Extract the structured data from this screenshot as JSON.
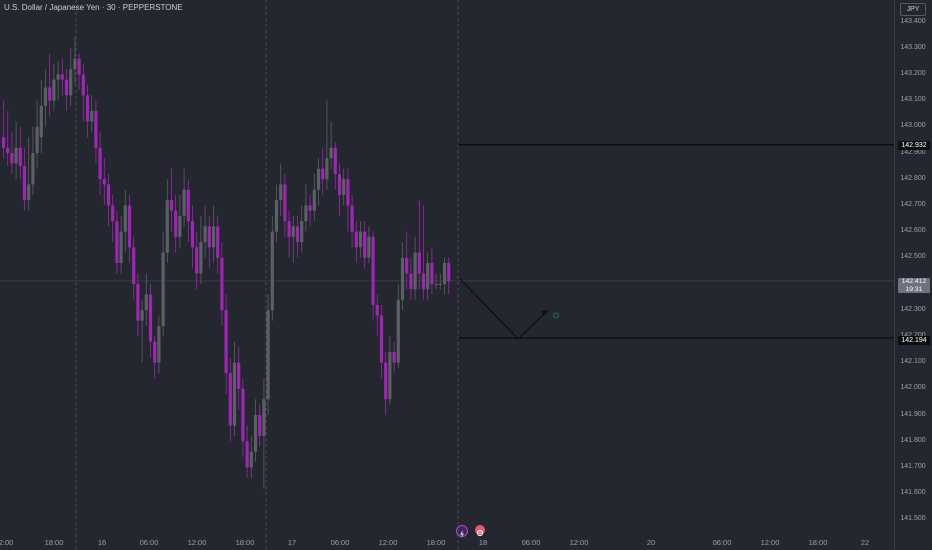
{
  "header": {
    "symbol_title": "U.S. Dollar / Japanese Yen · 30 · PEPPERSTONE",
    "currency_button": "JPY"
  },
  "price_tags": {
    "upper_line": "142.932",
    "current_price": "142.412",
    "countdown": "19:31",
    "lower_line": "142.194"
  },
  "colors": {
    "background": "#252730",
    "bull_candle": "#5d5f66",
    "bear_candle": "#9c27b0",
    "grid_line": "#555a66",
    "horizontal_line": "#0d0e12"
  },
  "icons": {
    "event_1": "lightning-icon",
    "event_2": "flag-icon"
  },
  "chart_data": {
    "type": "candlestick",
    "title": "U.S. Dollar / Japanese Yen · 30 · PEPPERSTONE",
    "ylim": [
      141.5,
      143.5
    ],
    "y_ticks": [
      "143.400",
      "143.300",
      "143.200",
      "143.100",
      "143.000",
      "142.900",
      "142.800",
      "142.700",
      "142.600",
      "142.500",
      "142.400",
      "142.300",
      "142.200",
      "142.100",
      "142.000",
      "141.900",
      "141.800",
      "141.700",
      "141.600",
      "141.500"
    ],
    "x_ticks": [
      "2:00",
      "18:00",
      "16",
      "06:00",
      "12:00",
      "18:00",
      "17",
      "06:00",
      "12:00",
      "18:00",
      "18",
      "06:00",
      "12:00",
      "20",
      "06:00",
      "12:00",
      "18:00",
      "22"
    ],
    "horizontal_lines": [
      142.932,
      142.194
    ],
    "current_price": 142.412,
    "projection": [
      142.42,
      142.19,
      142.3
    ],
    "candles": [
      [
        142.96,
        142.92,
        143.1,
        142.88
      ],
      [
        142.92,
        142.9,
        143.06,
        142.85
      ],
      [
        142.9,
        142.86,
        142.98,
        142.82
      ],
      [
        142.86,
        142.92,
        143.02,
        142.8
      ],
      [
        142.92,
        142.85,
        143.0,
        142.8
      ],
      [
        142.85,
        142.72,
        142.92,
        142.68
      ],
      [
        142.72,
        142.78,
        142.96,
        142.68
      ],
      [
        142.78,
        142.9,
        143.0,
        142.74
      ],
      [
        142.9,
        143.0,
        143.1,
        142.84
      ],
      [
        142.96,
        143.08,
        143.18,
        142.9
      ],
      [
        143.08,
        143.15,
        143.22,
        143.0
      ],
      [
        143.15,
        143.1,
        143.28,
        143.04
      ],
      [
        143.1,
        143.18,
        143.24,
        143.06
      ],
      [
        143.18,
        143.2,
        143.25,
        143.1
      ],
      [
        143.2,
        143.18,
        143.26,
        143.12
      ],
      [
        143.18,
        143.12,
        143.22,
        143.06
      ],
      [
        143.12,
        143.22,
        143.3,
        143.08
      ],
      [
        143.22,
        143.26,
        143.34,
        143.16
      ],
      [
        143.26,
        143.2,
        143.28,
        143.14
      ],
      [
        143.2,
        143.12,
        143.24,
        143.02
      ],
      [
        143.12,
        143.02,
        143.16,
        142.96
      ],
      [
        143.02,
        143.06,
        143.12,
        142.98
      ],
      [
        143.06,
        142.92,
        143.1,
        142.86
      ],
      [
        142.92,
        142.8,
        142.98,
        142.74
      ],
      [
        142.8,
        142.78,
        142.88,
        142.7
      ],
      [
        142.78,
        142.7,
        142.82,
        142.62
      ],
      [
        142.7,
        142.64,
        142.74,
        142.56
      ],
      [
        142.64,
        142.48,
        142.68,
        142.44
      ],
      [
        142.48,
        142.6,
        142.66,
        142.44
      ],
      [
        142.6,
        142.7,
        142.76,
        142.52
      ],
      [
        142.7,
        142.54,
        142.74,
        142.48
      ],
      [
        142.54,
        142.4,
        142.58,
        142.34
      ],
      [
        142.4,
        142.26,
        142.44,
        142.2
      ],
      [
        142.26,
        142.3,
        142.34,
        142.1
      ],
      [
        142.3,
        142.36,
        142.44,
        142.24
      ],
      [
        142.36,
        142.18,
        142.4,
        142.12
      ],
      [
        142.18,
        142.1,
        142.2,
        142.04
      ],
      [
        142.1,
        142.24,
        142.28,
        142.06
      ],
      [
        142.24,
        142.52,
        142.6,
        142.2
      ],
      [
        142.52,
        142.72,
        142.8,
        142.48
      ],
      [
        142.72,
        142.68,
        142.84,
        142.6
      ],
      [
        142.68,
        142.58,
        142.74,
        142.52
      ],
      [
        142.58,
        142.66,
        142.74,
        142.54
      ],
      [
        142.66,
        142.76,
        142.84,
        142.62
      ],
      [
        142.76,
        142.64,
        142.8,
        142.56
      ],
      [
        142.64,
        142.54,
        142.7,
        142.46
      ],
      [
        142.54,
        142.44,
        142.6,
        142.38
      ],
      [
        142.44,
        142.56,
        142.66,
        142.4
      ],
      [
        142.56,
        142.62,
        142.7,
        142.5
      ],
      [
        142.62,
        142.54,
        142.66,
        142.46
      ],
      [
        142.54,
        142.62,
        142.7,
        142.48
      ],
      [
        142.62,
        142.5,
        142.66,
        142.44
      ],
      [
        142.5,
        142.3,
        142.56,
        142.24
      ],
      [
        142.3,
        142.06,
        142.36,
        141.98
      ],
      [
        142.06,
        141.86,
        142.12,
        141.8
      ],
      [
        141.86,
        142.1,
        142.18,
        141.82
      ],
      [
        142.1,
        142.0,
        142.16,
        141.92
      ],
      [
        142.0,
        141.8,
        142.04,
        141.74
      ],
      [
        141.8,
        141.7,
        141.86,
        141.66
      ],
      [
        141.7,
        141.76,
        141.82,
        141.66
      ],
      [
        141.76,
        141.9,
        141.96,
        141.72
      ],
      [
        141.9,
        141.82,
        141.94,
        141.78
      ],
      [
        141.82,
        141.96,
        142.04,
        141.62
      ],
      [
        141.96,
        142.3,
        142.36,
        141.9
      ],
      [
        142.3,
        142.6,
        142.66,
        142.26
      ],
      [
        142.6,
        142.72,
        142.78,
        142.56
      ],
      [
        142.72,
        142.78,
        142.86,
        142.66
      ],
      [
        142.78,
        142.64,
        142.82,
        142.58
      ],
      [
        142.64,
        142.58,
        142.68,
        142.5
      ],
      [
        142.58,
        142.62,
        142.66,
        142.48
      ],
      [
        142.62,
        142.56,
        142.66,
        142.5
      ],
      [
        142.56,
        142.64,
        142.7,
        142.52
      ],
      [
        142.64,
        142.7,
        142.78,
        142.6
      ],
      [
        142.7,
        142.68,
        142.74,
        142.62
      ],
      [
        142.68,
        142.76,
        142.82,
        142.64
      ],
      [
        142.76,
        142.84,
        142.88,
        142.7
      ],
      [
        142.84,
        142.8,
        142.92,
        142.74
      ],
      [
        142.8,
        142.88,
        143.1,
        142.76
      ],
      [
        142.88,
        142.92,
        143.02,
        142.84
      ],
      [
        142.92,
        142.82,
        142.94,
        142.76
      ],
      [
        142.82,
        142.74,
        142.86,
        142.66
      ],
      [
        142.74,
        142.8,
        142.84,
        142.7
      ],
      [
        142.8,
        142.7,
        142.84,
        142.6
      ],
      [
        142.7,
        142.6,
        142.74,
        142.54
      ],
      [
        142.6,
        142.54,
        142.64,
        142.48
      ],
      [
        142.54,
        142.6,
        142.64,
        142.5
      ],
      [
        142.6,
        142.5,
        142.64,
        142.46
      ],
      [
        142.5,
        142.58,
        142.62,
        142.48
      ],
      [
        142.58,
        142.32,
        142.6,
        142.26
      ],
      [
        142.32,
        142.28,
        142.36,
        142.2
      ],
      [
        142.28,
        142.1,
        142.32,
        142.04
      ],
      [
        142.1,
        141.96,
        142.14,
        141.9
      ],
      [
        141.96,
        142.14,
        142.2,
        141.94
      ],
      [
        142.14,
        142.1,
        142.18,
        142.06
      ],
      [
        142.1,
        142.34,
        142.4,
        142.08
      ],
      [
        142.34,
        142.5,
        142.56,
        142.3
      ],
      [
        142.5,
        142.44,
        142.6,
        142.38
      ],
      [
        142.44,
        142.38,
        142.5,
        142.34
      ],
      [
        142.38,
        142.52,
        142.58,
        142.34
      ],
      [
        142.52,
        142.44,
        142.72,
        142.38
      ],
      [
        142.44,
        142.38,
        142.7,
        142.34
      ],
      [
        142.38,
        142.48,
        142.52,
        142.34
      ],
      [
        142.48,
        142.4,
        142.54,
        142.36
      ],
      [
        142.4,
        142.4,
        142.44,
        142.38
      ],
      [
        142.4,
        142.4,
        142.44,
        142.38
      ],
      [
        142.4,
        142.48,
        142.5,
        142.36
      ],
      [
        142.48,
        142.41,
        142.5,
        142.36
      ]
    ]
  }
}
